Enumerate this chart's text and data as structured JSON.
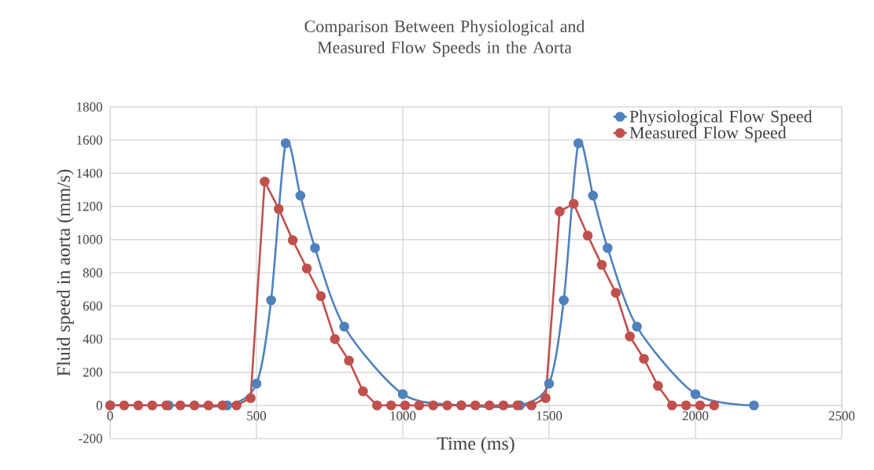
{
  "chart_data": {
    "type": "line",
    "title": "Comparison Between Physiological and Measured Flow Speeds in the Aorta",
    "xlabel": "Time (ms)",
    "ylabel": "Fluid speed in aorta (mm/s)",
    "series": [
      {
        "name": "Physiological Flow Speed",
        "color": "#4f81bd",
        "x": [
          0,
          200,
          400,
          500,
          550,
          600,
          650,
          700,
          800,
          1000,
          1200,
          1400,
          1500,
          1550,
          1600,
          1650,
          1700,
          1800,
          2000,
          2200
        ],
        "values": [
          0,
          0,
          0,
          131,
          634,
          1581,
          1265,
          949,
          475,
          68,
          0,
          0,
          131,
          634,
          1581,
          1265,
          949,
          475,
          68,
          0
        ]
      },
      {
        "name": "Measured Flow Speed",
        "color": "#c0504d",
        "x": [
          0,
          48,
          96,
          144,
          192,
          240,
          288,
          336,
          384,
          432,
          480,
          528,
          576,
          624,
          672,
          720,
          768,
          816,
          864,
          912,
          960,
          1008,
          1056,
          1104,
          1152,
          1200,
          1248,
          1296,
          1344,
          1392,
          1440,
          1488,
          1536,
          1584,
          1632,
          1680,
          1728,
          1776,
          1824,
          1872,
          1920,
          1968,
          2016,
          2064
        ],
        "values": [
          0,
          0,
          0,
          0,
          0,
          0,
          0,
          0,
          0,
          0,
          44,
          1350,
          1185,
          996,
          826,
          659,
          400,
          270,
          85,
          0,
          0,
          0,
          0,
          0,
          0,
          0,
          0,
          0,
          0,
          0,
          0,
          44,
          1169,
          1216,
          1024,
          847,
          679,
          416,
          281,
          118,
          0,
          0,
          0,
          0
        ]
      }
    ],
    "xlim": [
      0,
      2500
    ],
    "ylim": [
      -200,
      1800
    ],
    "xticks": [
      0,
      500,
      1000,
      1500,
      2000,
      2500
    ],
    "yticks": [
      -200,
      0,
      200,
      400,
      600,
      800,
      1000,
      1200,
      1400,
      1600,
      1800
    ],
    "grid": true,
    "legend": "top right",
    "marker": "circle"
  }
}
